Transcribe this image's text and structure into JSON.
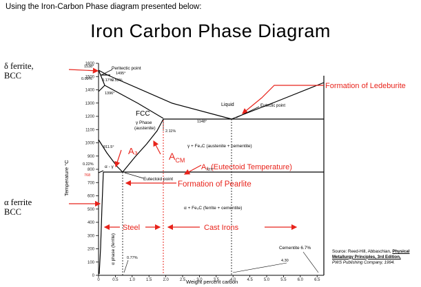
{
  "header": "Using the Iron-Carbon Phase diagram presented below:",
  "title": "Iron Carbon Phase Diagram",
  "left_labels": {
    "delta_ferrite_line1": "δ ferrite,",
    "delta_ferrite_line2": "BCC",
    "alpha_ferrite_line1": "α ferrite",
    "alpha_ferrite_line2": "BCC"
  },
  "axes": {
    "ylabel": "Temperature °C",
    "xlabel": "Weight percent carbon",
    "y_ticks": [
      "1600",
      "1500",
      "1400",
      "1300",
      "1200",
      "1100",
      "1000",
      "900",
      "800",
      "700",
      "600",
      "500",
      "400",
      "300",
      "200",
      "100",
      "0"
    ],
    "x_ticks": [
      "0",
      "0.5",
      "1.0",
      "1.5",
      "2.0",
      "2.5",
      "3.0",
      "3.5",
      "4.0",
      "4.5",
      "5.0",
      "5.5",
      "6.0",
      "6.5"
    ]
  },
  "annotations": {
    "peritectic": "Peritectic point",
    "t1495": "1495°",
    "t1538": "1538°",
    "c009": "0.09%",
    "c017": "0.17%",
    "c053": "0.53%",
    "t1396": "1396°",
    "liquid": "Liquid",
    "ledeburite": "Formation of Ledeburite",
    "eutectic": "Eutectic point",
    "fcc": "FCC",
    "gamma_phase": "γ Phase",
    "austenite": "(austenite)",
    "t1148": "1148°",
    "c211": "2.11%",
    "t9115": "911.5°",
    "a3": "A₃",
    "acm_main": "A",
    "acm_sub": "CM",
    "gamma_cementite": "γ + Fe₃C (austenite + cementite)",
    "t727": "727°",
    "a1": "A₁ (Eutectoid Temperature)",
    "c022": "0.22%",
    "alpha_gamma": "α - γ",
    "t768": "768",
    "eutectoid": "Eutectoid point",
    "pearlite": "Formation of Pearlite",
    "alpha_phase": "α phase (ferrite)",
    "alpha_cementite": "α + Fe₃C (ferrite + cementite)",
    "steel": "Steel",
    "cast_irons": "Cast Irons",
    "cementite": "Cementite 6.7%",
    "c077": "0.77%",
    "c430": "4.30"
  },
  "source": {
    "line1_prefix": "Source: Reed-Hill, Abbaschian, ",
    "line1_bold": "Physical",
    "line2": "Metallurgy Principles, 3rd Edition,",
    "line3": "PWS Publishing Company, 1994."
  },
  "colors": {
    "red": "#e8231b",
    "line": "#000000",
    "tick_text": "#222222"
  }
}
